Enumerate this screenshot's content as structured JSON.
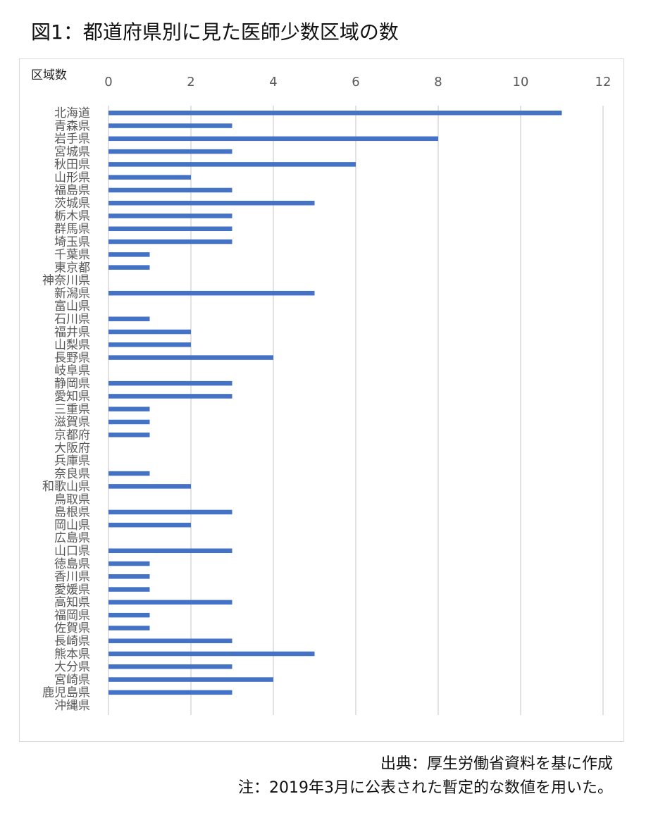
{
  "title": "図1：都道府県別に見た医師少数区域の数",
  "source": "出典：厚生労働省資料を基に作成",
  "note": "注：2019年3月に公表された暫定的な数値を用いた。",
  "chart_data": {
    "type": "bar",
    "orientation": "horizontal",
    "title": "図1：都道府県別に見た医師少数区域の数",
    "axis_label": "区域数",
    "axis_position": "top",
    "xlim": [
      0,
      12
    ],
    "xticks": [
      0,
      2,
      4,
      6,
      8,
      10,
      12
    ],
    "grid": true,
    "bar_color": "#4472c4",
    "categories": [
      "北海道",
      "青森県",
      "岩手県",
      "宮城県",
      "秋田県",
      "山形県",
      "福島県",
      "茨城県",
      "栃木県",
      "群馬県",
      "埼玉県",
      "千葉県",
      "東京都",
      "神奈川県",
      "新潟県",
      "富山県",
      "石川県",
      "福井県",
      "山梨県",
      "長野県",
      "岐阜県",
      "静岡県",
      "愛知県",
      "三重県",
      "滋賀県",
      "京都府",
      "大阪府",
      "兵庫県",
      "奈良県",
      "和歌山県",
      "鳥取県",
      "島根県",
      "岡山県",
      "広島県",
      "山口県",
      "徳島県",
      "香川県",
      "愛媛県",
      "高知県",
      "福岡県",
      "佐賀県",
      "長崎県",
      "熊本県",
      "大分県",
      "宮崎県",
      "鹿児島県",
      "沖縄県"
    ],
    "values": [
      11,
      3,
      8,
      3,
      6,
      2,
      3,
      5,
      3,
      3,
      3,
      1,
      1,
      0,
      5,
      0,
      1,
      2,
      2,
      4,
      0,
      3,
      3,
      1,
      1,
      1,
      0,
      0,
      1,
      2,
      0,
      3,
      2,
      0,
      3,
      1,
      1,
      1,
      3,
      1,
      1,
      3,
      5,
      3,
      4,
      3,
      0
    ]
  }
}
